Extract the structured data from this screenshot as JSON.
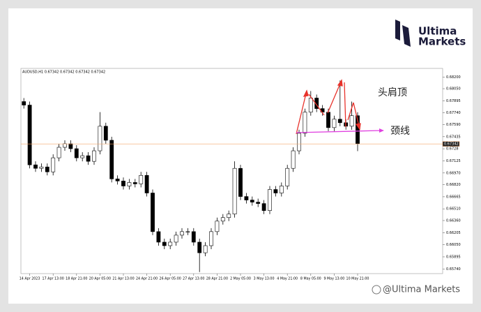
{
  "brand": {
    "line1": "Ultima",
    "line2": "Markets"
  },
  "watermark": "@Ultima Markets",
  "chart_data": {
    "type": "candlestick",
    "subtitle": "AUDUSD,H1  0.67342 0.67342 0.67342 0.67342",
    "annotations": [
      "头肩顶",
      "颈线"
    ],
    "categories": [
      null,
      "14 Apr 2023",
      null,
      null,
      null,
      "17 Apr 13:00",
      null,
      null,
      null,
      "18 Apr 21:00",
      null,
      null,
      null,
      "20 Apr 05:00",
      null,
      null,
      null,
      "21 Apr 13:00",
      null,
      null,
      null,
      "24 Apr 21:00",
      null,
      null,
      null,
      "26 Apr 05:00",
      null,
      null,
      null,
      "27 Apr 13:00",
      null,
      null,
      null,
      "28 Apr 21:00",
      null,
      null,
      null,
      "2 May 05:00",
      null,
      null,
      null,
      "3 May 13:00",
      null,
      null,
      null,
      "4 May 21:00",
      null,
      null,
      null,
      "8 May 05:00",
      null,
      null,
      null,
      "9 May 13:00",
      null,
      null,
      null,
      "10 May 21:00"
    ],
    "open": [
      0.67885,
      0.6784,
      0.67074,
      0.67029,
      0.67047,
      0.66984,
      0.67164,
      0.67299,
      0.67344,
      0.67281,
      0.67164,
      0.67191,
      0.67119,
      0.67254,
      0.67569,
      0.67389,
      0.66894,
      0.66867,
      0.66803,
      0.66848,
      0.6683,
      0.66939,
      0.66713,
      0.66218,
      0.66083,
      0.66038,
      0.66083,
      0.66173,
      0.66218,
      0.66218,
      0.66083,
      0.65947,
      0.66038,
      0.66218,
      0.66353,
      0.66398,
      0.66443,
      0.67029,
      0.66668,
      0.66623,
      0.66596,
      0.66578,
      0.66488,
      0.66758,
      0.66713,
      0.66803,
      0.67029,
      0.67254,
      0.67479,
      0.67749,
      0.6793,
      0.67795,
      0.67749,
      0.67551,
      0.67659,
      0.67614,
      0.67569,
      0.67704
    ],
    "high": [
      0.6793,
      0.67885,
      0.67119,
      0.67092,
      0.67092,
      0.67209,
      0.67344,
      0.67389,
      0.67389,
      0.67326,
      0.67236,
      0.67236,
      0.67299,
      0.6775,
      0.67614,
      0.67434,
      0.66939,
      0.66912,
      0.66893,
      0.66893,
      0.66984,
      0.66984,
      0.66758,
      0.66263,
      0.66128,
      0.66128,
      0.66218,
      0.66263,
      0.66263,
      0.66263,
      0.66128,
      0.66083,
      0.66263,
      0.66398,
      0.66443,
      0.66488,
      0.67119,
      0.67074,
      0.66713,
      0.66668,
      0.66641,
      0.66623,
      0.66803,
      0.66803,
      0.66848,
      0.67074,
      0.67299,
      0.67524,
      0.67794,
      0.6802,
      0.67975,
      0.6784,
      0.67794,
      0.67704,
      0.68155,
      0.67659,
      0.67885,
      0.67749
    ],
    "low": [
      0.67795,
      0.67029,
      0.66984,
      0.66984,
      0.66939,
      0.66939,
      0.67119,
      0.67254,
      0.67236,
      0.67119,
      0.67119,
      0.67074,
      0.67074,
      0.67209,
      0.67344,
      0.66849,
      0.66822,
      0.66758,
      0.66758,
      0.66785,
      0.66785,
      0.66668,
      0.66173,
      0.66038,
      0.65993,
      0.65993,
      0.66038,
      0.66128,
      0.66173,
      0.66038,
      0.657,
      0.65902,
      0.65993,
      0.66173,
      0.66308,
      0.66353,
      0.66398,
      0.66623,
      0.66578,
      0.66551,
      0.66533,
      0.66443,
      0.66443,
      0.66668,
      0.66668,
      0.66758,
      0.66984,
      0.67209,
      0.67434,
      0.67704,
      0.6775,
      0.67704,
      0.67506,
      0.67506,
      0.67569,
      0.67524,
      0.67524,
      0.6725
    ],
    "close": [
      0.6784,
      0.67074,
      0.67029,
      0.67047,
      0.66984,
      0.67164,
      0.67299,
      0.67344,
      0.67281,
      0.67164,
      0.67191,
      0.67119,
      0.67254,
      0.67569,
      0.67389,
      0.66894,
      0.66867,
      0.66803,
      0.66848,
      0.6683,
      0.66939,
      0.66713,
      0.66218,
      0.66083,
      0.66038,
      0.66083,
      0.66173,
      0.66218,
      0.66218,
      0.66083,
      0.65947,
      0.66038,
      0.66218,
      0.66353,
      0.66398,
      0.66443,
      0.67029,
      0.66668,
      0.66623,
      0.66596,
      0.66578,
      0.66488,
      0.66758,
      0.66713,
      0.66803,
      0.67029,
      0.67254,
      0.67479,
      0.67749,
      0.6793,
      0.67795,
      0.67749,
      0.67551,
      0.67659,
      0.67614,
      0.67569,
      0.67704,
      0.67342
    ],
    "ylim": [
      0.6568,
      0.6831
    ],
    "yticks": [
      {
        "value": 0.682,
        "label": "0.68200"
      },
      {
        "value": 0.6805,
        "label": "0.68050"
      },
      0.67895,
      {
        "value": 0.6774,
        "label": "0.67740"
      },
      {
        "value": 0.6759,
        "label": "0.67590"
      },
      0.67435,
      0.6728,
      0.67125,
      {
        "value": 0.6697,
        "label": "0.66970"
      },
      {
        "value": 0.6682,
        "label": "0.66820"
      },
      0.66665,
      {
        "value": 0.6651,
        "label": "0.66510"
      },
      {
        "value": 0.6636,
        "label": "0.66360"
      },
      0.66205,
      {
        "value": 0.6605,
        "label": "0.66050"
      },
      0.65895,
      {
        "value": 0.6574,
        "label": "0.65740"
      }
    ],
    "current_price": 0.67342,
    "colors": {
      "up": "#ffffff",
      "down": "#000000",
      "price_line": "#f4a46a"
    }
  }
}
